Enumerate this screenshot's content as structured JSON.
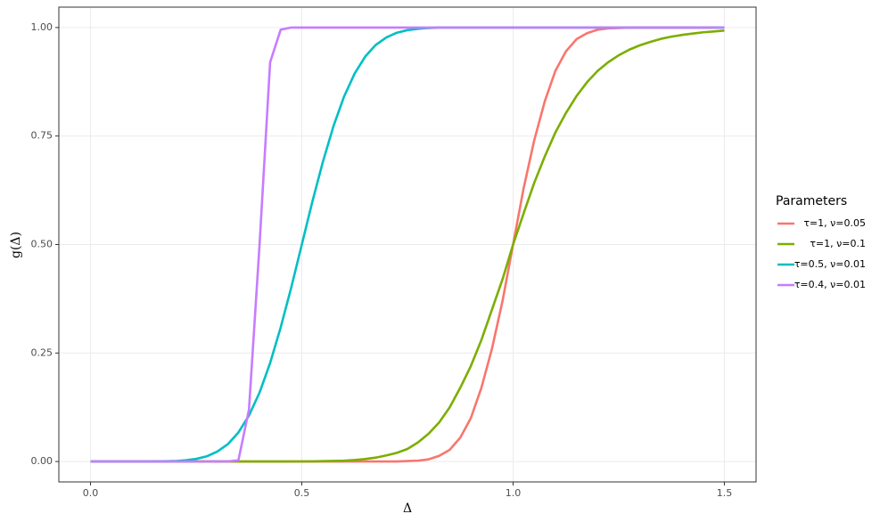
{
  "chart_data": {
    "type": "line",
    "x_label": "Δ",
    "y_label": "g(Δ)",
    "legend_title": "Parameters",
    "legend_position": "right",
    "grid": true,
    "x": [
      0,
      0.025,
      0.05,
      0.075,
      0.1,
      0.125,
      0.15,
      0.175,
      0.2,
      0.225,
      0.25,
      0.275,
      0.3,
      0.325,
      0.35,
      0.375,
      0.4,
      0.425,
      0.45,
      0.475,
      0.5,
      0.525,
      0.55,
      0.575,
      0.6,
      0.625,
      0.65,
      0.675,
      0.7,
      0.725,
      0.75,
      0.775,
      0.8,
      0.825,
      0.85,
      0.875,
      0.9,
      0.925,
      0.95,
      0.975,
      1,
      1.025,
      1.05,
      1.075,
      1.1,
      1.125,
      1.15,
      1.175,
      1.2,
      1.225,
      1.25,
      1.275,
      1.3,
      1.325,
      1.35,
      1.375,
      1.4,
      1.425,
      1.45,
      1.475,
      1.5
    ],
    "series": [
      {
        "name": "τ=1, ν=0.05",
        "color": "#F8766D",
        "values": [
          0,
          0,
          0,
          0,
          0,
          0,
          0,
          0,
          0,
          0,
          0,
          0,
          0,
          0,
          0,
          0,
          0,
          0,
          0,
          0,
          0,
          0,
          0,
          0,
          0,
          0,
          0,
          0,
          0,
          0,
          0.001,
          0.002,
          0.005,
          0.013,
          0.027,
          0.055,
          0.1,
          0.17,
          0.26,
          0.37,
          0.5,
          0.63,
          0.74,
          0.83,
          0.9,
          0.945,
          0.973,
          0.987,
          0.995,
          0.998,
          0.999,
          1,
          1,
          1,
          1,
          1,
          1,
          1,
          1,
          1,
          1
        ]
      },
      {
        "name": "τ=1, ν=0.1",
        "color": "#7CAE00",
        "values": [
          0,
          0,
          0,
          0,
          0,
          0,
          0,
          0,
          0,
          0,
          0,
          0,
          0,
          0,
          0,
          0,
          0,
          0,
          0,
          0,
          0.0002,
          0.0004,
          0.0008,
          0.0013,
          0.002,
          0.0035,
          0.0057,
          0.009,
          0.014,
          0.02,
          0.029,
          0.044,
          0.064,
          0.09,
          0.125,
          0.17,
          0.22,
          0.28,
          0.35,
          0.42,
          0.5,
          0.572,
          0.642,
          0.703,
          0.758,
          0.803,
          0.842,
          0.874,
          0.9,
          0.92,
          0.936,
          0.949,
          0.959,
          0.967,
          0.974,
          0.979,
          0.983,
          0.986,
          0.989,
          0.991,
          0.993
        ]
      },
      {
        "name": "τ=0.5, ν=0.01",
        "color": "#00BFC4",
        "values": [
          0,
          0,
          0,
          0,
          0,
          0,
          0,
          0.0005,
          0.001,
          0.003,
          0.006,
          0.012,
          0.023,
          0.04,
          0.067,
          0.106,
          0.159,
          0.227,
          0.309,
          0.401,
          0.5,
          0.599,
          0.691,
          0.773,
          0.841,
          0.894,
          0.933,
          0.96,
          0.977,
          0.988,
          0.994,
          0.997,
          0.999,
          1,
          1,
          1,
          1,
          1,
          1,
          1,
          1,
          1,
          1,
          1,
          1,
          1,
          1,
          1,
          1,
          1,
          1,
          1,
          1,
          1,
          1,
          1,
          1,
          1,
          1,
          1,
          1
        ]
      },
      {
        "name": "τ=0.4, ν=0.01",
        "color": "#C77CFF",
        "values": [
          0,
          0,
          0,
          0,
          0,
          0,
          0,
          0,
          0,
          0,
          0,
          0,
          0,
          0,
          0.003,
          0.12,
          0.5,
          0.92,
          0.995,
          1,
          1,
          1,
          1,
          1,
          1,
          1,
          1,
          1,
          1,
          1,
          1,
          1,
          1,
          1,
          1,
          1,
          1,
          1,
          1,
          1,
          1,
          1,
          1,
          1,
          1,
          1,
          1,
          1,
          1,
          1,
          1,
          1,
          1,
          1,
          1,
          1,
          1,
          1,
          1,
          1,
          1
        ]
      }
    ],
    "xlim": [
      -0.075,
      1.575
    ],
    "xticks": [
      {
        "value": 0,
        "label": "0.0"
      },
      {
        "value": 0.5,
        "label": "0.5"
      },
      {
        "value": 1,
        "label": "1.0"
      },
      {
        "value": 1.5,
        "label": "1.5"
      }
    ],
    "ylim": [
      -0.047,
      1.047
    ],
    "yticks": [
      {
        "value": 0,
        "label": "0.00"
      },
      {
        "value": 0.25,
        "label": "0.25"
      },
      {
        "value": 0.5,
        "label": "0.50"
      },
      {
        "value": 0.75,
        "label": "0.75"
      },
      {
        "value": 1,
        "label": "1.00"
      }
    ]
  }
}
